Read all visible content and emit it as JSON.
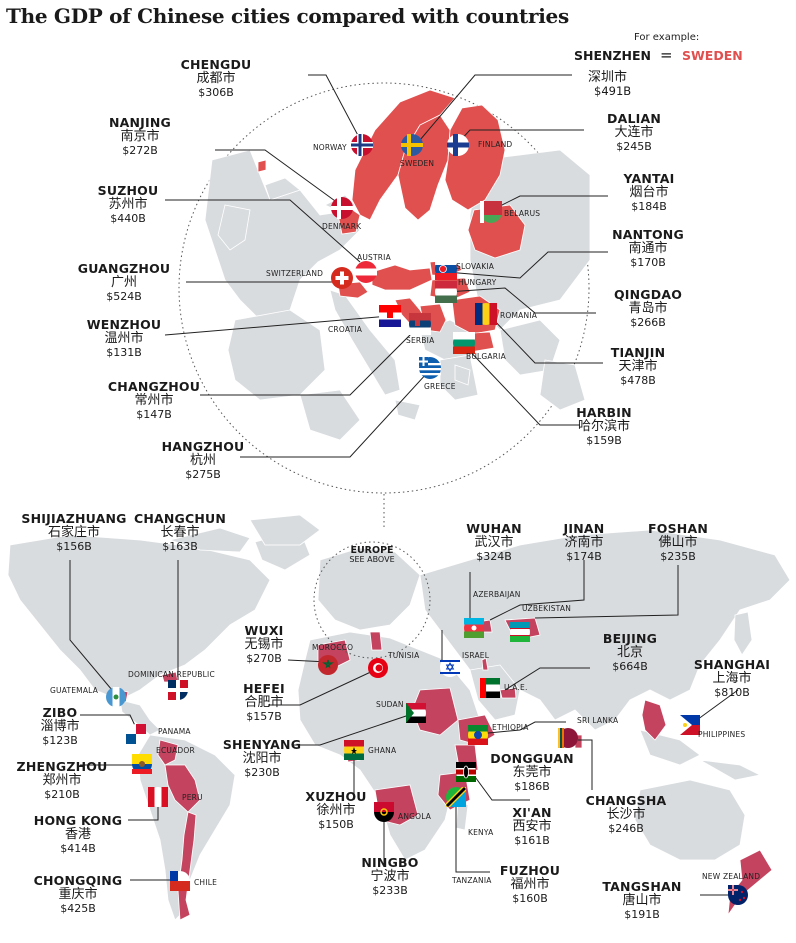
{
  "title": "The GDP of Chinese cities compared with countries",
  "legend": {
    "note": "For example:",
    "city": "SHENZHEN",
    "equals": "=",
    "country": "SWEDEN",
    "city_cn": "深圳市",
    "gdp": "$491B"
  },
  "europe_inset": {
    "title": "EUROPE",
    "subtitle": "SEE ABOVE"
  },
  "colors": {
    "highlight": "#e0504f",
    "highlight_world": "#c4435f",
    "land": "#d8dcde",
    "line": "#222222"
  },
  "cities": [
    {
      "en": "CHENGDU",
      "cn": "成都市",
      "gdp": "$306B",
      "country": "NORWAY"
    },
    {
      "en": "NANJING",
      "cn": "南京市",
      "gdp": "$272B",
      "country": "DENMARK"
    },
    {
      "en": "SUZHOU",
      "cn": "苏州市",
      "gdp": "$440B",
      "country": "AUSTRIA"
    },
    {
      "en": "GUANGZHOU",
      "cn": "广州",
      "gdp": "$524B",
      "country": "SWITZERLAND"
    },
    {
      "en": "WENZHOU",
      "cn": "温州市",
      "gdp": "$131B",
      "country": "CROATIA"
    },
    {
      "en": "CHANGZHOU",
      "cn": "常州市",
      "gdp": "$147B",
      "country": "SERBIA"
    },
    {
      "en": "HANGZHOU",
      "cn": "杭州",
      "gdp": "$275B",
      "country": "GREECE"
    },
    {
      "en": "DALIAN",
      "cn": "大连市",
      "gdp": "$245B",
      "country": "FINLAND"
    },
    {
      "en": "YANTAI",
      "cn": "烟台市",
      "gdp": "$184B",
      "country": "BELARUS"
    },
    {
      "en": "NANTONG",
      "cn": "南通市",
      "gdp": "$170B",
      "country": "SLOVAKIA"
    },
    {
      "en": "QINGDAO",
      "cn": "青岛市",
      "gdp": "$266B",
      "country": "HUNGARY"
    },
    {
      "en": "TIANJIN",
      "cn": "天津市",
      "gdp": "$478B",
      "country": "ROMANIA"
    },
    {
      "en": "HARBIN",
      "cn": "哈尔滨市",
      "gdp": "$159B",
      "country": "BULGARIA"
    },
    {
      "en": "SHIJIAZHUANG",
      "cn": "石家庄市",
      "gdp": "$156B",
      "country": "GUATEMALA"
    },
    {
      "en": "CHANGCHUN",
      "cn": "长春市",
      "gdp": "$163B",
      "country": "DOMINICAN REPUBLIC"
    },
    {
      "en": "ZIBO",
      "cn": "淄博市",
      "gdp": "$123B",
      "country": "PANAMA"
    },
    {
      "en": "ZHENGZHOU",
      "cn": "郑州市",
      "gdp": "$210B",
      "country": "ECUADOR"
    },
    {
      "en": "HONG KONG",
      "cn": "香港",
      "gdp": "$414B",
      "country": "PERU"
    },
    {
      "en": "CHONGQING",
      "cn": "重庆市",
      "gdp": "$425B",
      "country": "CHILE"
    },
    {
      "en": "WUXI",
      "cn": "无锡市",
      "gdp": "$270B",
      "country": "MOROCCO"
    },
    {
      "en": "HEFEI",
      "cn": "合肥市",
      "gdp": "$157B",
      "country": "TUNISIA"
    },
    {
      "en": "SHENYANG",
      "cn": "沈阳市",
      "gdp": "$230B",
      "country": "SUDAN"
    },
    {
      "en": "XUZHOU",
      "cn": "徐州市",
      "gdp": "$150B",
      "country": "GHANA"
    },
    {
      "en": "NINGBO",
      "cn": "宁波市",
      "gdp": "$233B",
      "country": "ANGOLA"
    },
    {
      "en": "WUHAN",
      "cn": "武汉市",
      "gdp": "$324B",
      "country": "AZERBAIJAN"
    },
    {
      "en": "JINAN",
      "cn": "济南市",
      "gdp": "$174B",
      "country": "ISRAEL"
    },
    {
      "en": "FOSHAN",
      "cn": "佛山市",
      "gdp": "$235B",
      "country": "UZBEKISTAN"
    },
    {
      "en": "BEIJING",
      "cn": "北京",
      "gdp": "$664B",
      "country": "U.A.E."
    },
    {
      "en": "DONGGUAN",
      "cn": "东莞市",
      "gdp": "$186B",
      "country": "ETHIOPIA"
    },
    {
      "en": "XI'AN",
      "cn": "西安市",
      "gdp": "$161B",
      "country": "KENYA"
    },
    {
      "en": "FUZHOU",
      "cn": "福州市",
      "gdp": "$160B",
      "country": "TANZANIA"
    },
    {
      "en": "CHANGSHA",
      "cn": "长沙市",
      "gdp": "$246B",
      "country": "SRI LANKA"
    },
    {
      "en": "SHANGHAI",
      "cn": "上海市",
      "gdp": "$810B",
      "country": "PHILIPPINES"
    },
    {
      "en": "TANGSHAN",
      "cn": "唐山市",
      "gdp": "$191B",
      "country": "NEW ZEALAND"
    }
  ],
  "country_labels": [
    "NORWAY",
    "SWEDEN",
    "FINLAND",
    "DENMARK",
    "BELARUS",
    "AUSTRIA",
    "SWITZERLAND",
    "SLOVAKIA",
    "HUNGARY",
    "CROATIA",
    "SERBIA",
    "ROMANIA",
    "BULGARIA",
    "GREECE",
    "AZERBAIJAN",
    "UZBEKISTAN",
    "MOROCCO",
    "TUNISIA",
    "ISRAEL",
    "U.A.E.",
    "GUATEMALA",
    "DOMINICAN REPUBLIC",
    "PANAMA",
    "ECUADOR",
    "PERU",
    "CHILE",
    "SUDAN",
    "ETHIOPIA",
    "GHANA",
    "ANGOLA",
    "KENYA",
    "TANZANIA",
    "SRI LANKA",
    "PHILIPPINES",
    "NEW ZEALAND"
  ]
}
